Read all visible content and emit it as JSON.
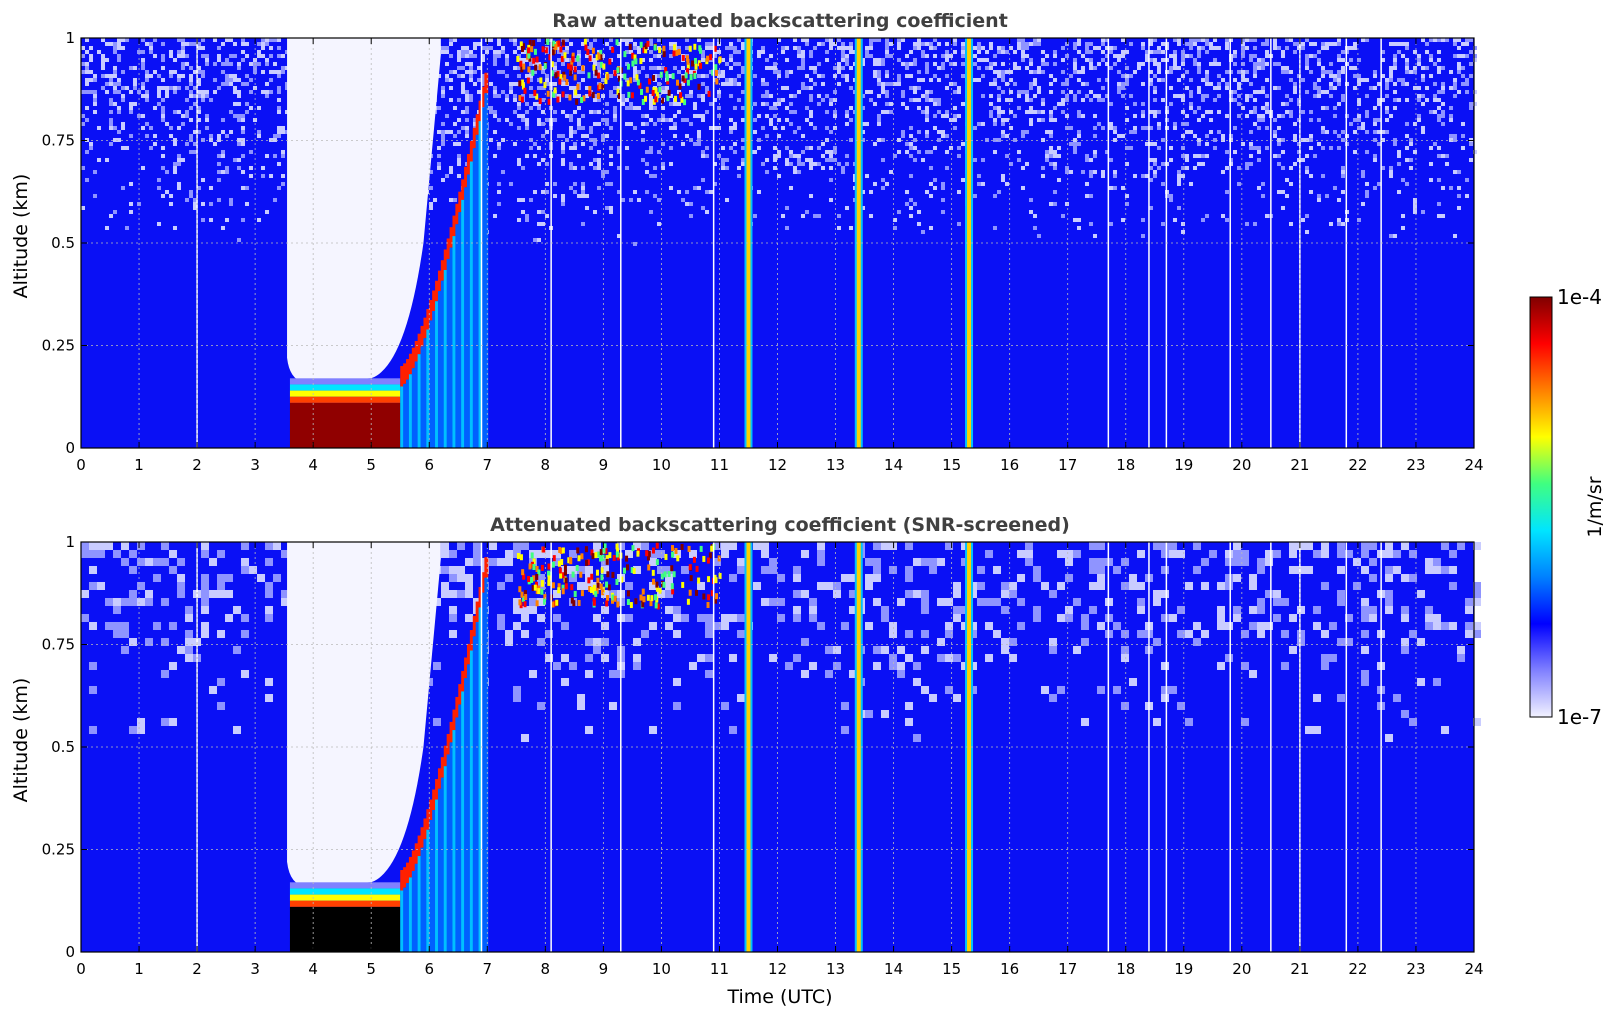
{
  "chart_data": [
    {
      "type": "heatmap",
      "title": "Raw attenuated backscattering coefficient",
      "xlabel": "",
      "ylabel": "Altitude (km)",
      "xlim": [
        0,
        24
      ],
      "ylim": [
        0,
        1
      ],
      "grid": true,
      "x_ticks": [
        "0",
        "1",
        "2",
        "3",
        "4",
        "5",
        "6",
        "7",
        "8",
        "9",
        "10",
        "11",
        "12",
        "13",
        "14",
        "15",
        "16",
        "17",
        "18",
        "19",
        "20",
        "21",
        "22",
        "23",
        "24"
      ],
      "y_ticks": [
        "0",
        "0.25",
        "0.5",
        "0.75",
        "1"
      ],
      "features": [
        {
          "kind": "cloud-layer",
          "t_start": 3.6,
          "t_end": 5.5,
          "alt_base": 0.0,
          "alt_top": 0.15
        },
        {
          "kind": "cloud-edge-rising",
          "t_start": 5.5,
          "t_end": 7.0,
          "alt_base": 0.2,
          "alt_top": 0.9
        },
        {
          "kind": "high-cloud",
          "t_start": 7.5,
          "t_end": 11.0,
          "alt_base": 0.85,
          "alt_top": 1.0
        },
        {
          "kind": "precipitation-column",
          "t": 11.5
        },
        {
          "kind": "precipitation-column",
          "t": 13.4
        },
        {
          "kind": "precipitation-column",
          "t": 15.3
        }
      ]
    },
    {
      "type": "heatmap",
      "title": "Attenuated backscattering coefficient (SNR-screened)",
      "xlabel": "Time (UTC)",
      "ylabel": "Altitude (km)",
      "xlim": [
        0,
        24
      ],
      "ylim": [
        0,
        1
      ],
      "grid": true,
      "x_ticks": [
        "0",
        "1",
        "2",
        "3",
        "4",
        "5",
        "6",
        "7",
        "8",
        "9",
        "10",
        "11",
        "12",
        "13",
        "14",
        "15",
        "16",
        "17",
        "18",
        "19",
        "20",
        "21",
        "22",
        "23",
        "24"
      ],
      "y_ticks": [
        "0",
        "0.25",
        "0.5",
        "0.75",
        "1"
      ],
      "features": [
        {
          "kind": "cloud-layer",
          "t_start": 3.6,
          "t_end": 5.5,
          "alt_base": 0.0,
          "alt_top": 0.15
        },
        {
          "kind": "cloud-edge-rising",
          "t_start": 5.5,
          "t_end": 7.0,
          "alt_base": 0.2,
          "alt_top": 0.95
        },
        {
          "kind": "high-cloud",
          "t_start": 7.5,
          "t_end": 11.0,
          "alt_base": 0.85,
          "alt_top": 1.0
        },
        {
          "kind": "precipitation-column",
          "t": 11.5
        },
        {
          "kind": "precipitation-column",
          "t": 13.4
        },
        {
          "kind": "precipitation-column",
          "t": 15.3
        }
      ]
    }
  ],
  "colorbar": {
    "label": "1/m/sr",
    "min_label": "1e-7",
    "max_label": "1e-4",
    "scale": "log",
    "colors": [
      "#f2f2ff",
      "#8080ff",
      "#0000ff",
      "#0080ff",
      "#00e5ff",
      "#40ff80",
      "#ffff00",
      "#ff8000",
      "#ff0000",
      "#800000"
    ]
  }
}
